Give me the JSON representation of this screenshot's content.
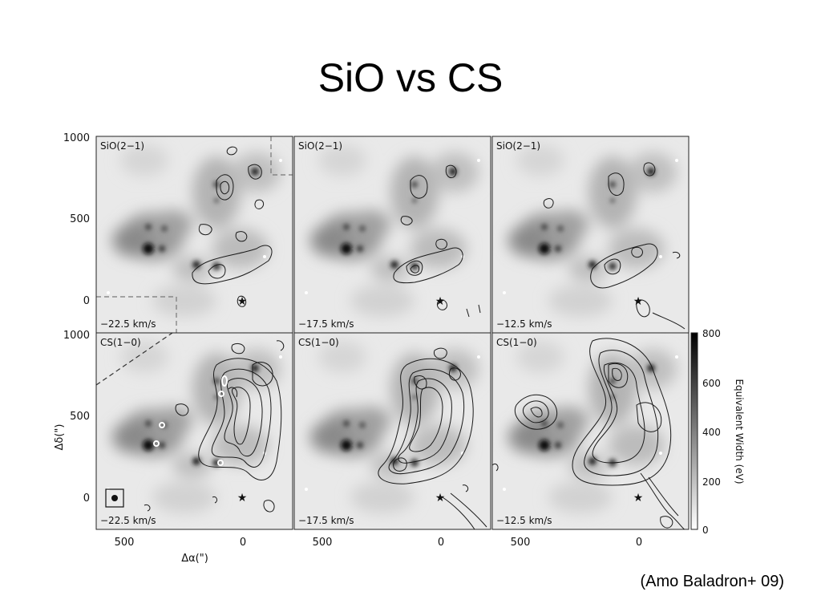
{
  "slide": {
    "title": "SiO vs CS",
    "credit": "(Amo Baladron+ 09)"
  },
  "figure": {
    "panels": [
      {
        "row": 0,
        "col": 0,
        "label": "SiO(2−1)",
        "velocity": "−22.5 km/s"
      },
      {
        "row": 0,
        "col": 1,
        "label": "SiO(2−1)",
        "velocity": "−17.5 km/s"
      },
      {
        "row": 0,
        "col": 2,
        "label": "SiO(2−1)",
        "velocity": "−12.5 km/s"
      },
      {
        "row": 1,
        "col": 0,
        "label": "CS(1−0)",
        "velocity": "−22.5 km/s"
      },
      {
        "row": 1,
        "col": 1,
        "label": "CS(1−0)",
        "velocity": "−17.5 km/s"
      },
      {
        "row": 1,
        "col": 2,
        "label": "CS(1−0)",
        "velocity": "−12.5 km/s"
      }
    ],
    "x_axis": {
      "label": "Δα(\")",
      "ticks": [
        "500",
        "0"
      ]
    },
    "y_axis": {
      "label": "Δδ(\")",
      "ticks_top": [
        "1000",
        "500",
        "0"
      ],
      "ticks_bottom": [
        "1000",
        "500",
        "0"
      ]
    },
    "colorbar": {
      "label": "Equivalent Width (eV)",
      "ticks": [
        "800",
        "600",
        "400",
        "200",
        "0"
      ]
    },
    "colors": {
      "background": "#ffffff",
      "panel_base": "#e6e6e6",
      "contour": "#1a1a1a"
    }
  }
}
